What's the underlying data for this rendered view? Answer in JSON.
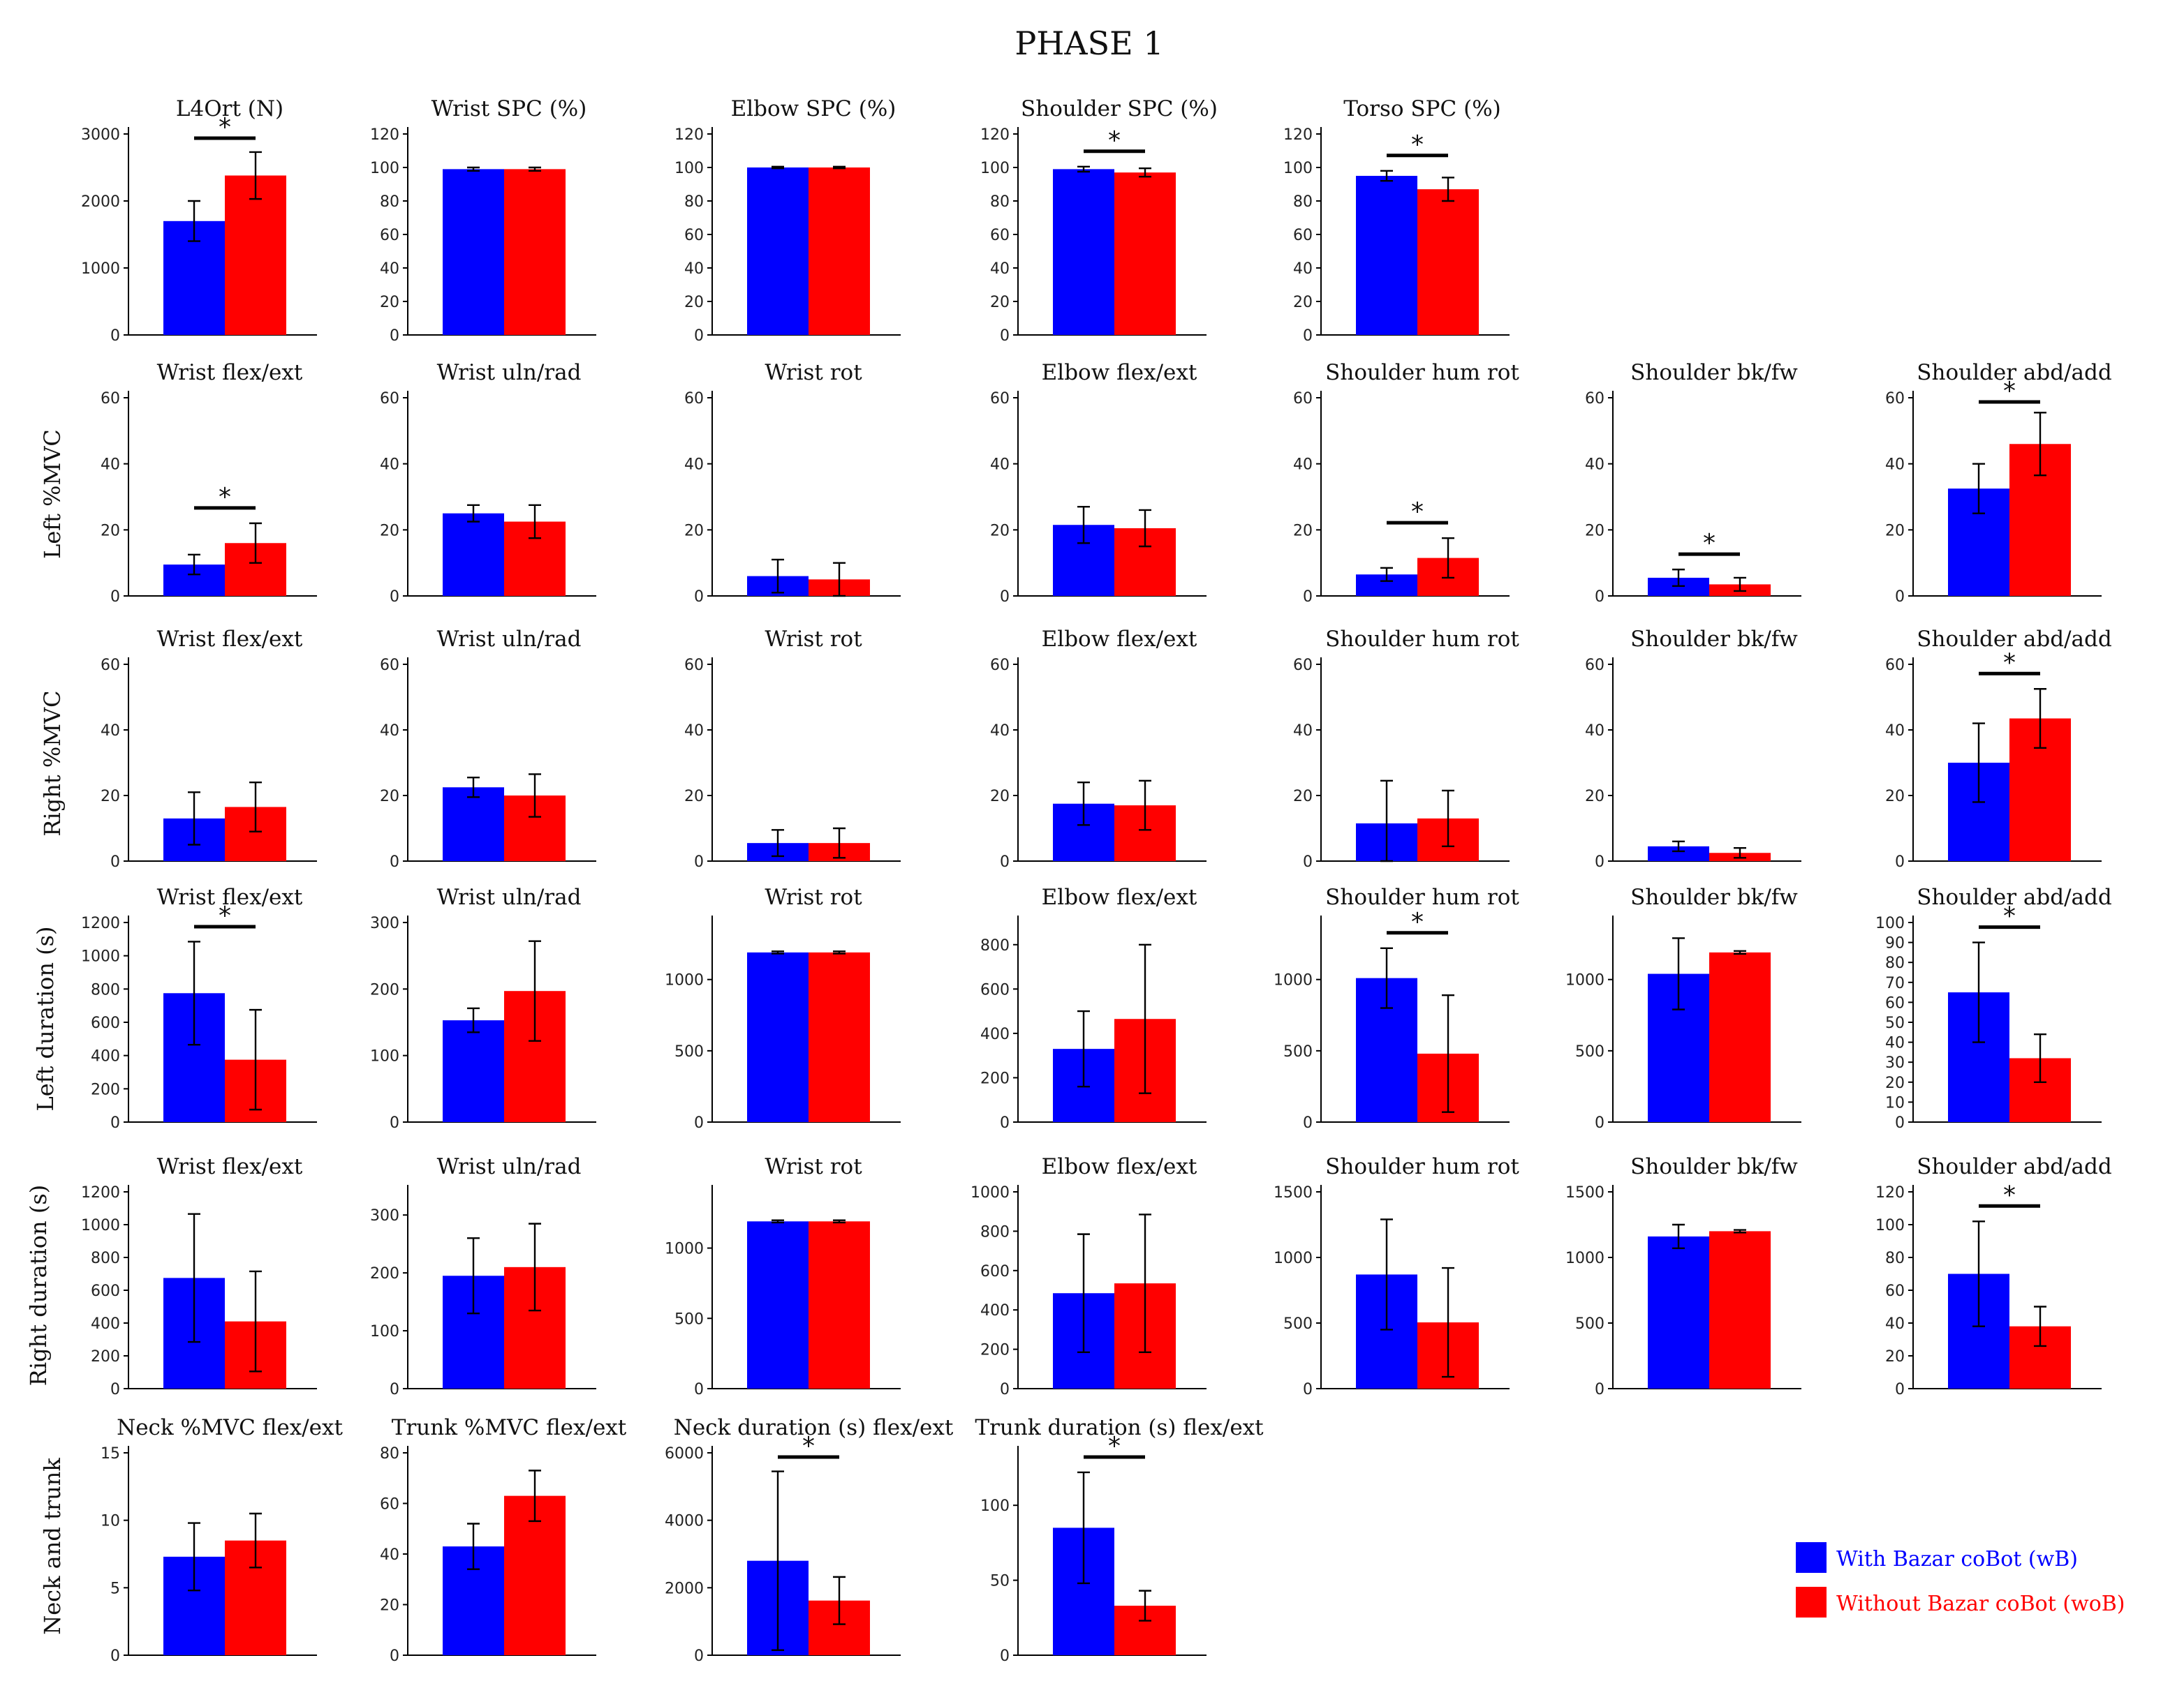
{
  "title": "PHASE 1",
  "colors": {
    "wB": "#0000ff",
    "woB": "#ff0000"
  },
  "legend": {
    "wB": "With Bazar coBot (wB)",
    "woB": "Without Bazar coBot (woB)"
  },
  "row_labels": [
    "",
    "Left %MVC",
    "Right %MVC",
    "Left duration (s)",
    "Right duration (s)",
    "Neck and trunk"
  ],
  "chart_data": [
    {
      "type": "bar",
      "row": 0,
      "col": 0,
      "title": "L4Ort (N)",
      "ylim": [
        0,
        3000
      ],
      "yticks": [
        0,
        1000,
        2000,
        3000
      ],
      "series": [
        {
          "name": "wB",
          "value": 1700,
          "error": 300
        },
        {
          "name": "woB",
          "value": 2380,
          "error": 350
        }
      ],
      "significant": true
    },
    {
      "type": "bar",
      "row": 0,
      "col": 1,
      "title": "Wrist SPC (%)",
      "ylim": [
        0,
        120
      ],
      "yticks": [
        0,
        20,
        40,
        60,
        80,
        100,
        120
      ],
      "series": [
        {
          "name": "wB",
          "value": 99,
          "error": 1
        },
        {
          "name": "woB",
          "value": 99,
          "error": 1
        }
      ],
      "significant": false
    },
    {
      "type": "bar",
      "row": 0,
      "col": 2,
      "title": "Elbow SPC (%)",
      "ylim": [
        0,
        120
      ],
      "yticks": [
        0,
        20,
        40,
        60,
        80,
        100,
        120
      ],
      "series": [
        {
          "name": "wB",
          "value": 100,
          "error": 0.5
        },
        {
          "name": "woB",
          "value": 100,
          "error": 0.5
        }
      ],
      "significant": false
    },
    {
      "type": "bar",
      "row": 0,
      "col": 3,
      "title": "Shoulder SPC (%)",
      "ylim": [
        0,
        120
      ],
      "yticks": [
        0,
        20,
        40,
        60,
        80,
        100,
        120
      ],
      "series": [
        {
          "name": "wB",
          "value": 99,
          "error": 1.5
        },
        {
          "name": "woB",
          "value": 97,
          "error": 2.5
        }
      ],
      "significant": true
    },
    {
      "type": "bar",
      "row": 0,
      "col": 4,
      "title": "Torso SPC (%)",
      "ylim": [
        0,
        120
      ],
      "yticks": [
        0,
        20,
        40,
        60,
        80,
        100,
        120
      ],
      "series": [
        {
          "name": "wB",
          "value": 95,
          "error": 3
        },
        {
          "name": "woB",
          "value": 87,
          "error": 7
        }
      ],
      "significant": true
    },
    {
      "type": "bar",
      "row": 1,
      "col": 0,
      "title": "Wrist flex/ext",
      "ylim": [
        0,
        60
      ],
      "yticks": [
        0,
        20,
        40,
        60
      ],
      "series": [
        {
          "name": "wB",
          "value": 9.5,
          "error": 3
        },
        {
          "name": "woB",
          "value": 16,
          "error": 6
        }
      ],
      "significant": true
    },
    {
      "type": "bar",
      "row": 1,
      "col": 1,
      "title": "Wrist uln/rad",
      "ylim": [
        0,
        60
      ],
      "yticks": [
        0,
        20,
        40,
        60
      ],
      "series": [
        {
          "name": "wB",
          "value": 25,
          "error": 2.5
        },
        {
          "name": "woB",
          "value": 22.5,
          "error": 5
        }
      ],
      "significant": false
    },
    {
      "type": "bar",
      "row": 1,
      "col": 2,
      "title": "Wrist rot",
      "ylim": [
        0,
        60
      ],
      "yticks": [
        0,
        20,
        40,
        60
      ],
      "series": [
        {
          "name": "wB",
          "value": 6,
          "error": 5
        },
        {
          "name": "woB",
          "value": 5,
          "error": 5
        }
      ],
      "significant": false
    },
    {
      "type": "bar",
      "row": 1,
      "col": 3,
      "title": "Elbow flex/ext",
      "ylim": [
        0,
        60
      ],
      "yticks": [
        0,
        20,
        40,
        60
      ],
      "series": [
        {
          "name": "wB",
          "value": 21.5,
          "error": 5.5
        },
        {
          "name": "woB",
          "value": 20.5,
          "error": 5.5
        }
      ],
      "significant": false
    },
    {
      "type": "bar",
      "row": 1,
      "col": 4,
      "title": "Shoulder hum rot",
      "ylim": [
        0,
        60
      ],
      "yticks": [
        0,
        20,
        40,
        60
      ],
      "series": [
        {
          "name": "wB",
          "value": 6.5,
          "error": 2
        },
        {
          "name": "woB",
          "value": 11.5,
          "error": 6
        }
      ],
      "significant": true
    },
    {
      "type": "bar",
      "row": 1,
      "col": 5,
      "title": "Shoulder bk/fw",
      "ylim": [
        0,
        60
      ],
      "yticks": [
        0,
        20,
        40,
        60
      ],
      "series": [
        {
          "name": "wB",
          "value": 5.5,
          "error": 2.5
        },
        {
          "name": "woB",
          "value": 3.5,
          "error": 2
        }
      ],
      "significant": true
    },
    {
      "type": "bar",
      "row": 1,
      "col": 6,
      "title": "Shoulder abd/add",
      "ylim": [
        0,
        60
      ],
      "yticks": [
        0,
        20,
        40,
        60
      ],
      "series": [
        {
          "name": "wB",
          "value": 32.5,
          "error": 7.5
        },
        {
          "name": "woB",
          "value": 46,
          "error": 9.5
        }
      ],
      "significant": true
    },
    {
      "type": "bar",
      "row": 2,
      "col": 0,
      "title": "Wrist flex/ext",
      "ylim": [
        0,
        60
      ],
      "yticks": [
        0,
        20,
        40,
        60
      ],
      "series": [
        {
          "name": "wB",
          "value": 13,
          "error": 8
        },
        {
          "name": "woB",
          "value": 16.5,
          "error": 7.5
        }
      ],
      "significant": false
    },
    {
      "type": "bar",
      "row": 2,
      "col": 1,
      "title": "Wrist uln/rad",
      "ylim": [
        0,
        60
      ],
      "yticks": [
        0,
        20,
        40,
        60
      ],
      "series": [
        {
          "name": "wB",
          "value": 22.5,
          "error": 3
        },
        {
          "name": "woB",
          "value": 20,
          "error": 6.5
        }
      ],
      "significant": false
    },
    {
      "type": "bar",
      "row": 2,
      "col": 2,
      "title": "Wrist rot",
      "ylim": [
        0,
        60
      ],
      "yticks": [
        0,
        20,
        40,
        60
      ],
      "series": [
        {
          "name": "wB",
          "value": 5.5,
          "error": 4
        },
        {
          "name": "woB",
          "value": 5.5,
          "error": 4.5
        }
      ],
      "significant": false
    },
    {
      "type": "bar",
      "row": 2,
      "col": 3,
      "title": "Elbow flex/ext",
      "ylim": [
        0,
        60
      ],
      "yticks": [
        0,
        20,
        40,
        60
      ],
      "series": [
        {
          "name": "wB",
          "value": 17.5,
          "error": 6.5
        },
        {
          "name": "woB",
          "value": 17,
          "error": 7.5
        }
      ],
      "significant": false
    },
    {
      "type": "bar",
      "row": 2,
      "col": 4,
      "title": "Shoulder hum rot",
      "ylim": [
        0,
        60
      ],
      "yticks": [
        0,
        20,
        40,
        60
      ],
      "series": [
        {
          "name": "wB",
          "value": 11.5,
          "error": 13
        },
        {
          "name": "woB",
          "value": 13,
          "error": 8.5
        }
      ],
      "significant": false
    },
    {
      "type": "bar",
      "row": 2,
      "col": 5,
      "title": "Shoulder bk/fw",
      "ylim": [
        0,
        60
      ],
      "yticks": [
        0,
        20,
        40,
        60
      ],
      "series": [
        {
          "name": "wB",
          "value": 4.5,
          "error": 1.5
        },
        {
          "name": "woB",
          "value": 2.5,
          "error": 1.5
        }
      ],
      "significant": false
    },
    {
      "type": "bar",
      "row": 2,
      "col": 6,
      "title": "Shoulder abd/add",
      "ylim": [
        0,
        60
      ],
      "yticks": [
        0,
        20,
        40,
        60
      ],
      "series": [
        {
          "name": "wB",
          "value": 30,
          "error": 12
        },
        {
          "name": "woB",
          "value": 43.5,
          "error": 9
        }
      ],
      "significant": true
    },
    {
      "type": "bar",
      "row": 3,
      "col": 0,
      "title": "Wrist flex/ext",
      "ylim": [
        0,
        1200
      ],
      "yticks": [
        0,
        200,
        400,
        600,
        800,
        1000,
        1200
      ],
      "series": [
        {
          "name": "wB",
          "value": 775,
          "error": 310
        },
        {
          "name": "woB",
          "value": 375,
          "error": 300
        }
      ],
      "significant": true
    },
    {
      "type": "bar",
      "row": 3,
      "col": 1,
      "title": "Wrist uln/rad",
      "ylim": [
        0,
        300
      ],
      "yticks": [
        0,
        100,
        200,
        300
      ],
      "series": [
        {
          "name": "wB",
          "value": 153,
          "error": 18
        },
        {
          "name": "woB",
          "value": 197,
          "error": 75
        }
      ],
      "significant": false
    },
    {
      "type": "bar",
      "row": 3,
      "col": 2,
      "title": "Wrist rot",
      "ylim": [
        0,
        1400
      ],
      "yticks": [
        0,
        500,
        1000
      ],
      "series": [
        {
          "name": "wB",
          "value": 1190,
          "error": 8
        },
        {
          "name": "woB",
          "value": 1190,
          "error": 8
        }
      ],
      "significant": false
    },
    {
      "type": "bar",
      "row": 3,
      "col": 3,
      "title": "Elbow flex/ext",
      "ylim": [
        0,
        900
      ],
      "yticks": [
        0,
        200,
        400,
        600,
        800
      ],
      "series": [
        {
          "name": "wB",
          "value": 330,
          "error": 170
        },
        {
          "name": "woB",
          "value": 465,
          "error": 335
        }
      ],
      "significant": false
    },
    {
      "type": "bar",
      "row": 3,
      "col": 4,
      "title": "Shoulder hum rot",
      "ylim": [
        0,
        1400
      ],
      "yticks": [
        0,
        500,
        1000
      ],
      "series": [
        {
          "name": "wB",
          "value": 1010,
          "error": 210
        },
        {
          "name": "woB",
          "value": 480,
          "error": 410
        }
      ],
      "significant": true
    },
    {
      "type": "bar",
      "row": 3,
      "col": 5,
      "title": "Shoulder bk/fw",
      "ylim": [
        0,
        1400
      ],
      "yticks": [
        0,
        500,
        1000
      ],
      "series": [
        {
          "name": "wB",
          "value": 1040,
          "error": 250
        },
        {
          "name": "woB",
          "value": 1190,
          "error": 10
        }
      ],
      "significant": false
    },
    {
      "type": "bar",
      "row": 3,
      "col": 6,
      "title": "Shoulder abd/add",
      "ylim": [
        0,
        100
      ],
      "yticks": [
        0,
        10,
        20,
        30,
        40,
        50,
        60,
        70,
        80,
        90,
        100
      ],
      "series": [
        {
          "name": "wB",
          "value": 65,
          "error": 25
        },
        {
          "name": "woB",
          "value": 32,
          "error": 12
        }
      ],
      "significant": true
    },
    {
      "type": "bar",
      "row": 4,
      "col": 0,
      "title": "Wrist flex/ext",
      "ylim": [
        0,
        1200
      ],
      "yticks": [
        0,
        200,
        400,
        600,
        800,
        1000,
        1200
      ],
      "series": [
        {
          "name": "wB",
          "value": 675,
          "error": 390
        },
        {
          "name": "woB",
          "value": 410,
          "error": 305
        }
      ],
      "significant": false
    },
    {
      "type": "bar",
      "row": 4,
      "col": 1,
      "title": "Wrist uln/rad",
      "ylim": [
        0,
        340
      ],
      "yticks": [
        0,
        100,
        200,
        300
      ],
      "series": [
        {
          "name": "wB",
          "value": 195,
          "error": 65
        },
        {
          "name": "woB",
          "value": 210,
          "error": 75
        }
      ],
      "significant": false
    },
    {
      "type": "bar",
      "row": 4,
      "col": 2,
      "title": "Wrist rot",
      "ylim": [
        0,
        1400
      ],
      "yticks": [
        0,
        500,
        1000
      ],
      "series": [
        {
          "name": "wB",
          "value": 1190,
          "error": 8
        },
        {
          "name": "woB",
          "value": 1190,
          "error": 8
        }
      ],
      "significant": false
    },
    {
      "type": "bar",
      "row": 4,
      "col": 3,
      "title": "Elbow flex/ext",
      "ylim": [
        0,
        1000
      ],
      "yticks": [
        0,
        200,
        400,
        600,
        800,
        1000
      ],
      "series": [
        {
          "name": "wB",
          "value": 485,
          "error": 300
        },
        {
          "name": "woB",
          "value": 535,
          "error": 350
        }
      ],
      "significant": false
    },
    {
      "type": "bar",
      "row": 4,
      "col": 4,
      "title": "Shoulder hum rot",
      "ylim": [
        0,
        1500
      ],
      "yticks": [
        0,
        500,
        1000,
        1500
      ],
      "series": [
        {
          "name": "wB",
          "value": 870,
          "error": 420
        },
        {
          "name": "woB",
          "value": 505,
          "error": 415
        }
      ],
      "significant": false
    },
    {
      "type": "bar",
      "row": 4,
      "col": 5,
      "title": "Shoulder bk/fw",
      "ylim": [
        0,
        1500
      ],
      "yticks": [
        0,
        500,
        1000,
        1500
      ],
      "series": [
        {
          "name": "wB",
          "value": 1160,
          "error": 90
        },
        {
          "name": "woB",
          "value": 1200,
          "error": 10
        }
      ],
      "significant": false
    },
    {
      "type": "bar",
      "row": 4,
      "col": 6,
      "title": "Shoulder abd/add",
      "ylim": [
        0,
        120
      ],
      "yticks": [
        0,
        20,
        40,
        60,
        80,
        100,
        120
      ],
      "series": [
        {
          "name": "wB",
          "value": 70,
          "error": 32
        },
        {
          "name": "woB",
          "value": 38,
          "error": 12
        }
      ],
      "significant": true
    },
    {
      "type": "bar",
      "row": 5,
      "col": 0,
      "title": "Neck %MVC flex/ext",
      "ylim": [
        0,
        15
      ],
      "yticks": [
        0,
        5,
        10,
        15
      ],
      "series": [
        {
          "name": "wB",
          "value": 7.3,
          "error": 2.5
        },
        {
          "name": "woB",
          "value": 8.5,
          "error": 2
        }
      ],
      "significant": false
    },
    {
      "type": "bar",
      "row": 5,
      "col": 1,
      "title": "Trunk %MVC flex/ext",
      "ylim": [
        0,
        80
      ],
      "yticks": [
        0,
        20,
        40,
        60,
        80
      ],
      "series": [
        {
          "name": "wB",
          "value": 43,
          "error": 9
        },
        {
          "name": "woB",
          "value": 63,
          "error": 10
        }
      ],
      "significant": false
    },
    {
      "type": "bar",
      "row": 5,
      "col": 2,
      "title": "Neck duration (s) flex/ext",
      "ylim": [
        0,
        6000
      ],
      "yticks": [
        0,
        2000,
        4000,
        6000
      ],
      "series": [
        {
          "name": "wB",
          "value": 2800,
          "error": 2650
        },
        {
          "name": "woB",
          "value": 1620,
          "error": 700
        }
      ],
      "significant": true
    },
    {
      "type": "bar",
      "row": 5,
      "col": 3,
      "title": "Trunk duration (s) flex/ext",
      "ylim": [
        0,
        135
      ],
      "yticks": [
        0,
        50,
        100
      ],
      "series": [
        {
          "name": "wB",
          "value": 85,
          "error": 37
        },
        {
          "name": "woB",
          "value": 33,
          "error": 10
        }
      ],
      "significant": true
    }
  ]
}
